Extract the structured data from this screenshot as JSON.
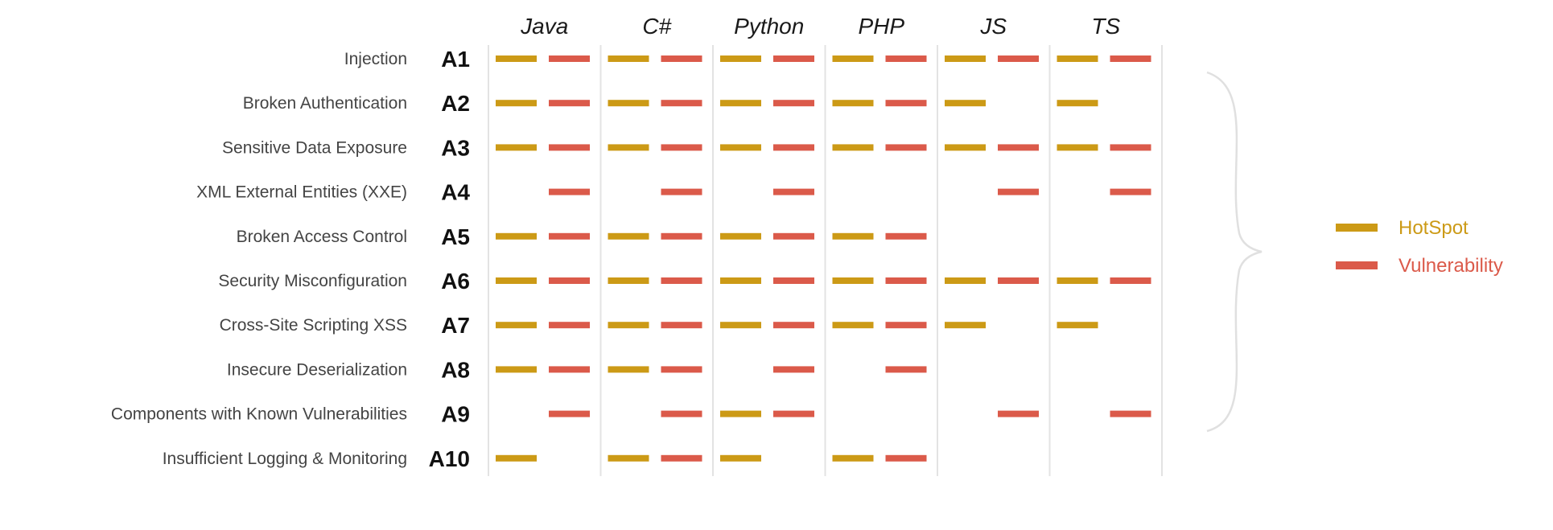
{
  "chart_data": {
    "type": "table",
    "title": "",
    "columns": [
      "Java",
      "C#",
      "Python",
      "PHP",
      "JS",
      "TS"
    ],
    "rows": [
      {
        "code": "A1",
        "label": "Injection"
      },
      {
        "code": "A2",
        "label": "Broken Authentication"
      },
      {
        "code": "A3",
        "label": "Sensitive Data Exposure"
      },
      {
        "code": "A4",
        "label": "XML External Entities (XXE)"
      },
      {
        "code": "A5",
        "label": "Broken Access Control"
      },
      {
        "code": "A6",
        "label": "Security Misconfiguration"
      },
      {
        "code": "A7",
        "label": "Cross-Site Scripting XSS"
      },
      {
        "code": "A8",
        "label": "Insecure Deserialization"
      },
      {
        "code": "A9",
        "label": "Components with Known Vulnerabilities"
      },
      {
        "code": "A10",
        "label": "Insufficient Logging & Monitoring"
      }
    ],
    "series": [
      {
        "name": "HotSpot",
        "color": "#cc9a16",
        "values": [
          [
            1,
            1,
            1,
            1,
            1,
            1
          ],
          [
            1,
            1,
            1,
            1,
            1,
            1
          ],
          [
            1,
            1,
            1,
            1,
            1,
            1
          ],
          [
            0,
            0,
            0,
            0,
            0,
            0
          ],
          [
            1,
            1,
            1,
            1,
            0,
            0
          ],
          [
            1,
            1,
            1,
            1,
            1,
            1
          ],
          [
            1,
            1,
            1,
            1,
            1,
            1
          ],
          [
            1,
            1,
            0,
            0,
            0,
            0
          ],
          [
            0,
            0,
            1,
            0,
            0,
            0
          ],
          [
            1,
            1,
            1,
            1,
            0,
            0
          ]
        ]
      },
      {
        "name": "Vulnerability",
        "color": "#db5a4a",
        "values": [
          [
            1,
            1,
            1,
            1,
            1,
            1
          ],
          [
            1,
            1,
            1,
            1,
            0,
            0
          ],
          [
            1,
            1,
            1,
            1,
            1,
            1
          ],
          [
            1,
            1,
            1,
            0,
            1,
            1
          ],
          [
            1,
            1,
            1,
            1,
            0,
            0
          ],
          [
            1,
            1,
            1,
            1,
            1,
            1
          ],
          [
            1,
            1,
            1,
            1,
            0,
            0
          ],
          [
            1,
            1,
            1,
            1,
            0,
            0
          ],
          [
            1,
            1,
            1,
            0,
            1,
            1
          ],
          [
            0,
            1,
            0,
            1,
            0,
            0
          ]
        ]
      }
    ],
    "legend": {
      "position": "right",
      "grouped_by": "brace"
    }
  }
}
